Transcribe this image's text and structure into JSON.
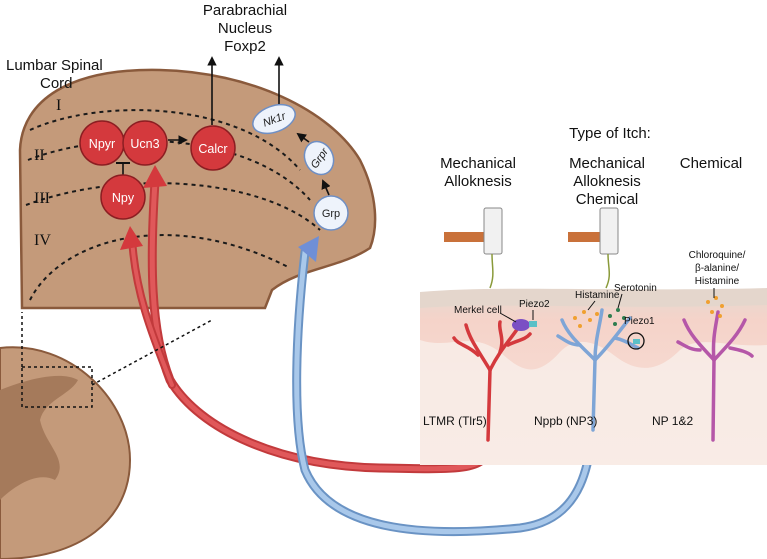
{
  "spinal_cord_title": [
    "Lumbar Spinal",
    "Cord"
  ],
  "parabrachial": [
    "Parabrachial",
    "Nucleus",
    "Foxp2"
  ],
  "laminae": [
    "I",
    "II",
    "III",
    "IV"
  ],
  "nodes": {
    "npyr": "Npyr",
    "ucn3": "Ucn3",
    "calcr": "Calcr",
    "npy": "Npy",
    "nk1r": "Nk1r",
    "grpr": "Grpr",
    "grp": "Grp"
  },
  "itch_header": "Type of Itch:",
  "itch_types": {
    "col1": [
      "Mechanical",
      "Alloknesis"
    ],
    "col2": [
      "Mechanical",
      "Alloknesis",
      "Chemical"
    ],
    "col3": [
      "Chemical"
    ]
  },
  "skin_labels": {
    "merkel": "Merkel cell",
    "piezo2": "Piezo2",
    "histamine": "Histamine",
    "serotonin": "Serotonin",
    "piezo1": "Piezo1",
    "chemicals": [
      "Chloroquine/",
      "β-alanine/",
      "Histamine"
    ]
  },
  "neuron_labels": {
    "ltmr": "LTMR (Tlr5)",
    "nppb": "Nppb (NP3)",
    "np12": "NP 1&2"
  },
  "colors": {
    "cord_fill": "#c49a7a",
    "cord_stroke": "#8a5a3c",
    "red_node": "#d4393d",
    "red_axon": "#d9494b",
    "blue_axon": "#8fb6df",
    "purple_neuron": "#b557a8",
    "skin": "#f3c9c0"
  }
}
